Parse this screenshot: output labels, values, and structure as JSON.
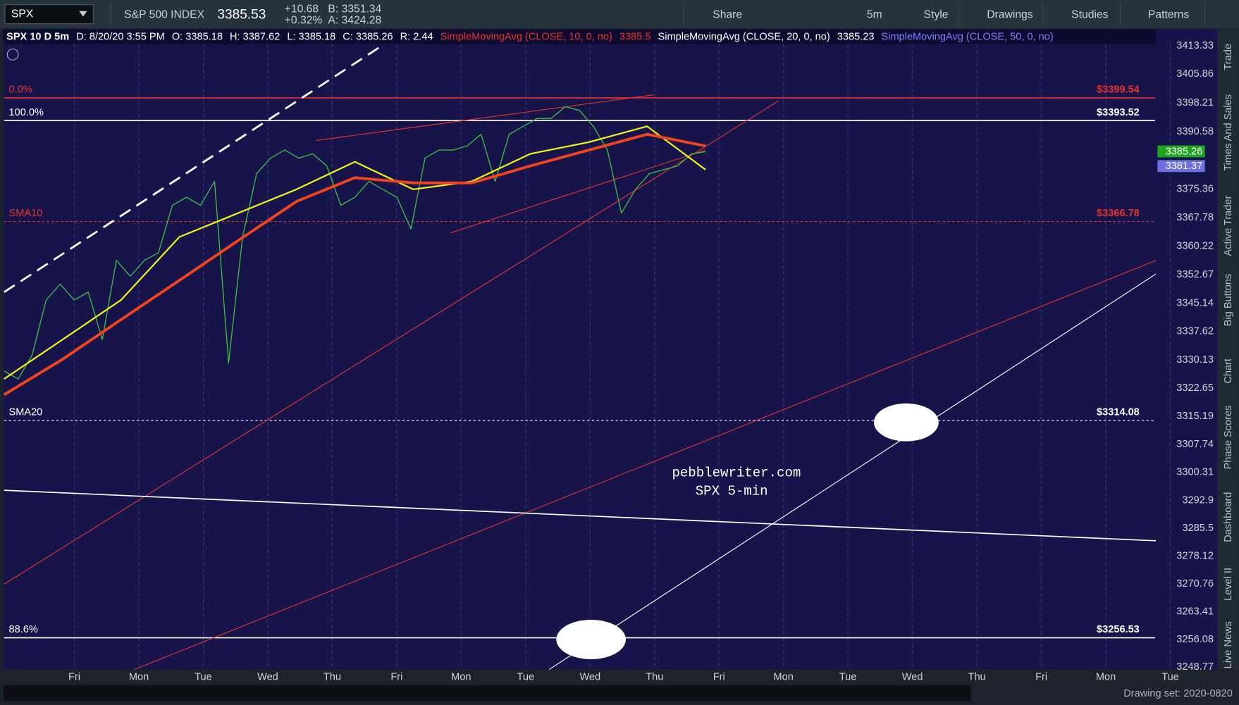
{
  "toolbar": {
    "symbol": "SPX",
    "name": "S&P 500 INDEX",
    "last": "3385.53",
    "change": "+10.68",
    "change_pct": "+0.32%",
    "bid": "B: 3351.34",
    "ask": "A: 3424.28",
    "buttons": [
      "Share",
      "5m",
      "Style",
      "Drawings",
      "Studies",
      "Patterns"
    ]
  },
  "study_bar": {
    "items": [
      {
        "text": "SPX 10 D 5m",
        "color": "#ffffff"
      },
      {
        "text": "D: 8/20/20 3:55 PM",
        "color": "#ffffff"
      },
      {
        "text": "O: 3385.18",
        "color": "#ffffff"
      },
      {
        "text": "H: 3387.62",
        "color": "#ffffff"
      },
      {
        "text": "L: 3385.18",
        "color": "#ffffff"
      },
      {
        "text": "C: 3385.26",
        "color": "#ffffff"
      },
      {
        "text": "R: 2.44",
        "color": "#ffffff"
      },
      {
        "text": "SimpleMovingAvg (CLOSE, 10, 0, no)",
        "color": "#e8332a"
      },
      {
        "text": "3385.5",
        "color": "#e8332a"
      },
      {
        "text": "SimpleMovingAvg (CLOSE, 20, 0, no)",
        "color": "#ffffff"
      },
      {
        "text": "3385.23",
        "color": "#ffffff"
      },
      {
        "text": "SimpleMovingAvg (CLOSE, 50, 0, no)",
        "color": "#8080ff"
      }
    ]
  },
  "side_tabs": [
    "Trade",
    "Times And Sales",
    "Active Trader",
    "Big Buttons",
    "Chart",
    "Phase Scores",
    "Dashboard",
    "Level II",
    "Live News"
  ],
  "chart": {
    "ylim": [
      3248.77,
      3413.33
    ],
    "yticks": [
      3413.33,
      3405.86,
      3398.21,
      3390.58,
      3375.36,
      3367.78,
      3360.22,
      3352.67,
      3345.14,
      3337.62,
      3330.13,
      3322.65,
      3315.19,
      3307.74,
      3300.31,
      3292.9,
      3285.5,
      3278.12,
      3270.76,
      3263.41,
      3256.08,
      3248.77
    ],
    "categories": [
      "Fri",
      "Mon",
      "Tue",
      "Wed",
      "Thu",
      "Fri",
      "Mon",
      "Tue",
      "Wed",
      "Thu",
      "Fri",
      "Mon",
      "Tue",
      "Wed",
      "Thu",
      "Fri",
      "Mon",
      "Tue"
    ],
    "levels": [
      {
        "name": "0.0%",
        "value": 3399.54,
        "label": "$3399.54",
        "color": "#e8332a",
        "dashed": false
      },
      {
        "name": "100.0%",
        "value": 3393.52,
        "label": "$3393.52",
        "color": "#ffffff",
        "dashed": false
      },
      {
        "name": "SMA10",
        "value": 3366.78,
        "label": "$3366.78",
        "color": "#e8332a",
        "dashed": true
      },
      {
        "name": "SMA20",
        "value": 3314.08,
        "label": "$3314.08",
        "color": "#ffffff",
        "dashed": true
      },
      {
        "name": "88.6%",
        "value": 3256.53,
        "label": "$3256.53",
        "color": "#ffffff",
        "dashed": false
      }
    ],
    "price_tags": [
      {
        "value": 3385.26,
        "color": "#1fa51f"
      },
      {
        "value": 3381.37,
        "color": "#7070e0"
      }
    ],
    "series": [
      {
        "name": "price",
        "color": "#3fbf3f",
        "width": 1.2,
        "values": [
          3327.2,
          3325.1,
          3331.4,
          3346.0,
          3350.2,
          3346.0,
          3348.1,
          3335.5,
          3356.5,
          3352.3,
          3356.5,
          3358.5,
          3371.1,
          3373.2,
          3371.1,
          3377.4,
          3329.3,
          3362.7,
          3379.5,
          3383.6,
          3385.7,
          3383.6,
          3384.7,
          3381.5,
          3371.1,
          3373.2,
          3377.4,
          3375.3,
          3373.2,
          3364.8,
          3383.6,
          3385.7,
          3385.7,
          3386.8,
          3389.9,
          3377.4,
          3389.9,
          3392.0,
          3394.1,
          3394.1,
          3397.2,
          3396.2,
          3392.0,
          3385.7,
          3369.0,
          3375.3,
          3379.5,
          3380.5,
          3381.5,
          3384.7,
          3385.26
        ]
      },
      {
        "name": "sma20",
        "color": "#f0f020",
        "width": 2,
        "values": [
          3325.1,
          3335.5,
          3346.0,
          3362.7,
          3369.0,
          3375.3,
          3382.6,
          3375.3,
          3377.4,
          3384.7,
          3387.8,
          3392.0,
          3380.5
        ]
      },
      {
        "name": "sma50",
        "color": "#f0451c",
        "width": 3.5,
        "values": [
          3320.9,
          3330.3,
          3340.8,
          3351.2,
          3361.7,
          3372.1,
          3378.4,
          3377.0,
          3377.0,
          3381.5,
          3385.7,
          3389.9,
          3386.8
        ]
      }
    ],
    "watermark": [
      "pebblewriter.com",
      "SPX 5-min"
    ]
  },
  "footer": {
    "drawing_set": "Drawing set: 2020-0820"
  }
}
